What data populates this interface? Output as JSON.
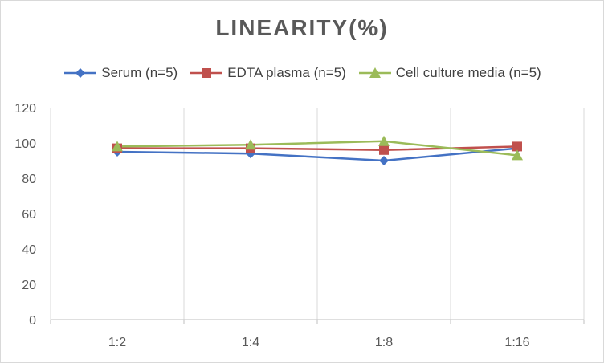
{
  "chart_data": {
    "type": "line",
    "title": "LINEARITY(%)",
    "categories": [
      "1:2",
      "1:4",
      "1:8",
      "1:16"
    ],
    "ylim": [
      0,
      120
    ],
    "yticks": [
      0,
      20,
      40,
      60,
      80,
      100,
      120
    ],
    "grid": "vertical",
    "legend_position": "top",
    "series": [
      {
        "name": "Serum (n=5)",
        "color": "#4472c4",
        "marker": "diamond",
        "values": [
          95,
          94,
          90,
          97
        ]
      },
      {
        "name": "EDTA plasma (n=5)",
        "color": "#c0504d",
        "marker": "square",
        "values": [
          97,
          97,
          96,
          98
        ]
      },
      {
        "name": "Cell culture media (n=5)",
        "color": "#9bbb59",
        "marker": "triangle",
        "values": [
          98,
          99,
          101,
          93
        ]
      }
    ]
  }
}
